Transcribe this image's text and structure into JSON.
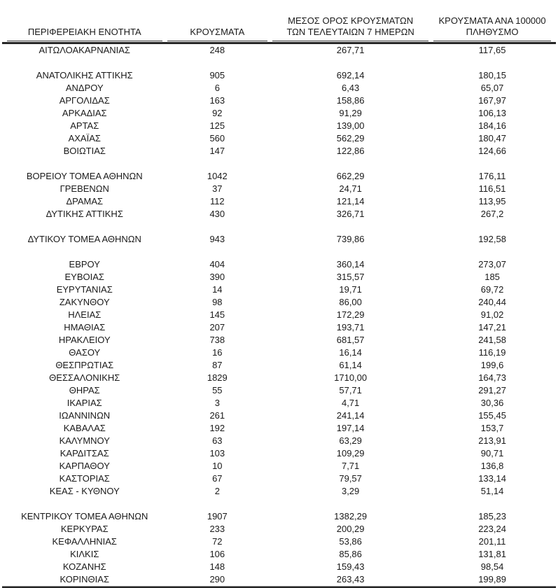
{
  "chart_data": {
    "type": "table",
    "title": "",
    "decimal_separator": ",",
    "headers": [
      {
        "label": "ΠΕΡΙΦΕΡΕΙΑΚΗ ΕΝΟΤΗΤΑ"
      },
      {
        "label": "ΚΡΟΥΣΜΑΤΑ"
      },
      {
        "label": "ΜΕΣΟΣ ΟΡΟΣ ΚΡΟΥΣΜΑΤΩΝ\nΤΩΝ ΤΕΛΕΥΤΑΙΩΝ 7 ΗΜΕΡΩΝ"
      },
      {
        "label": "ΚΡΟΥΣΜΑΤΑ ΑΝΑ 100000\nΠΛΗΘΥΣΜΟ"
      }
    ],
    "rows": [
      [
        "ΑΙΤΩΛΟΑΚΑΡΝΑΝΙΑΣ",
        "248",
        "267,71",
        "117,65"
      ],
      null,
      [
        "ΑΝΑΤΟΛΙΚΗΣ ΑΤΤΙΚΗΣ",
        "905",
        "692,14",
        "180,15"
      ],
      [
        "ΑΝΔΡΟΥ",
        "6",
        "6,43",
        "65,07"
      ],
      [
        "ΑΡΓΟΛΙΔΑΣ",
        "163",
        "158,86",
        "167,97"
      ],
      [
        "ΑΡΚΑΔΙΑΣ",
        "92",
        "91,29",
        "106,13"
      ],
      [
        "ΑΡΤΑΣ",
        "125",
        "139,00",
        "184,16"
      ],
      [
        "ΑΧΑΪΑΣ",
        "560",
        "562,29",
        "180,47"
      ],
      [
        "ΒΟΙΩΤΙΑΣ",
        "147",
        "122,86",
        "124,66"
      ],
      null,
      [
        "ΒΟΡΕΙΟΥ ΤΟΜΕΑ ΑΘΗΝΩΝ",
        "1042",
        "662,29",
        "176,11"
      ],
      [
        "ΓΡΕΒΕΝΩΝ",
        "37",
        "24,71",
        "116,51"
      ],
      [
        "ΔΡΑΜΑΣ",
        "112",
        "121,14",
        "113,95"
      ],
      [
        "ΔΥΤΙΚΗΣ ΑΤΤΙΚΗΣ",
        "430",
        "326,71",
        "267,2"
      ],
      null,
      [
        "ΔΥΤΙΚΟΥ ΤΟΜΕΑ ΑΘΗΝΩΝ",
        "943",
        "739,86",
        "192,58"
      ],
      null,
      [
        "ΕΒΡΟΥ",
        "404",
        "360,14",
        "273,07"
      ],
      [
        "ΕΥΒΟΙΑΣ",
        "390",
        "315,57",
        "185"
      ],
      [
        "ΕΥΡΥΤΑΝΙΑΣ",
        "14",
        "19,71",
        "69,72"
      ],
      [
        "ΖΑΚΥΝΘΟΥ",
        "98",
        "86,00",
        "240,44"
      ],
      [
        "ΗΛΕΙΑΣ",
        "145",
        "172,29",
        "91,02"
      ],
      [
        "ΗΜΑΘΙΑΣ",
        "207",
        "193,71",
        "147,21"
      ],
      [
        "ΗΡΑΚΛΕΙΟΥ",
        "738",
        "681,57",
        "241,58"
      ],
      [
        "ΘΑΣΟΥ",
        "16",
        "16,14",
        "116,19"
      ],
      [
        "ΘΕΣΠΡΩΤΙΑΣ",
        "87",
        "61,14",
        "199,6"
      ],
      [
        "ΘΕΣΣΑΛΟΝΙΚΗΣ",
        "1829",
        "1710,00",
        "164,73"
      ],
      [
        "ΘΗΡΑΣ",
        "55",
        "57,71",
        "291,27"
      ],
      [
        "ΙΚΑΡΙΑΣ",
        "3",
        "4,71",
        "30,36"
      ],
      [
        "ΙΩΑΝΝΙΝΩΝ",
        "261",
        "241,14",
        "155,45"
      ],
      [
        "ΚΑΒΑΛΑΣ",
        "192",
        "197,14",
        "153,7"
      ],
      [
        "ΚΑΛΥΜΝΟΥ",
        "63",
        "63,29",
        "213,91"
      ],
      [
        "ΚΑΡΔΙΤΣΑΣ",
        "103",
        "109,29",
        "90,71"
      ],
      [
        "ΚΑΡΠΑΘΟΥ",
        "10",
        "7,71",
        "136,8"
      ],
      [
        "ΚΑΣΤΟΡΙΑΣ",
        "67",
        "79,57",
        "133,14"
      ],
      [
        "ΚΕΑΣ - ΚΥΘΝΟΥ",
        "2",
        "3,29",
        "51,14"
      ],
      null,
      [
        "ΚΕΝΤΡΙΚΟΥ ΤΟΜΕΑ ΑΘΗΝΩΝ",
        "1907",
        "1382,29",
        "185,23"
      ],
      [
        "ΚΕΡΚΥΡΑΣ",
        "233",
        "200,29",
        "223,24"
      ],
      [
        "ΚΕΦΑΛΛΗΝΙΑΣ",
        "72",
        "53,86",
        "201,11"
      ],
      [
        "ΚΙΛΚΙΣ",
        "106",
        "85,86",
        "131,81"
      ],
      [
        "ΚΟΖΑΝΗΣ",
        "148",
        "159,43",
        "98,54"
      ],
      [
        "ΚΟΡΙΝΘΙΑΣ",
        "290",
        "263,43",
        "199,89"
      ]
    ]
  }
}
